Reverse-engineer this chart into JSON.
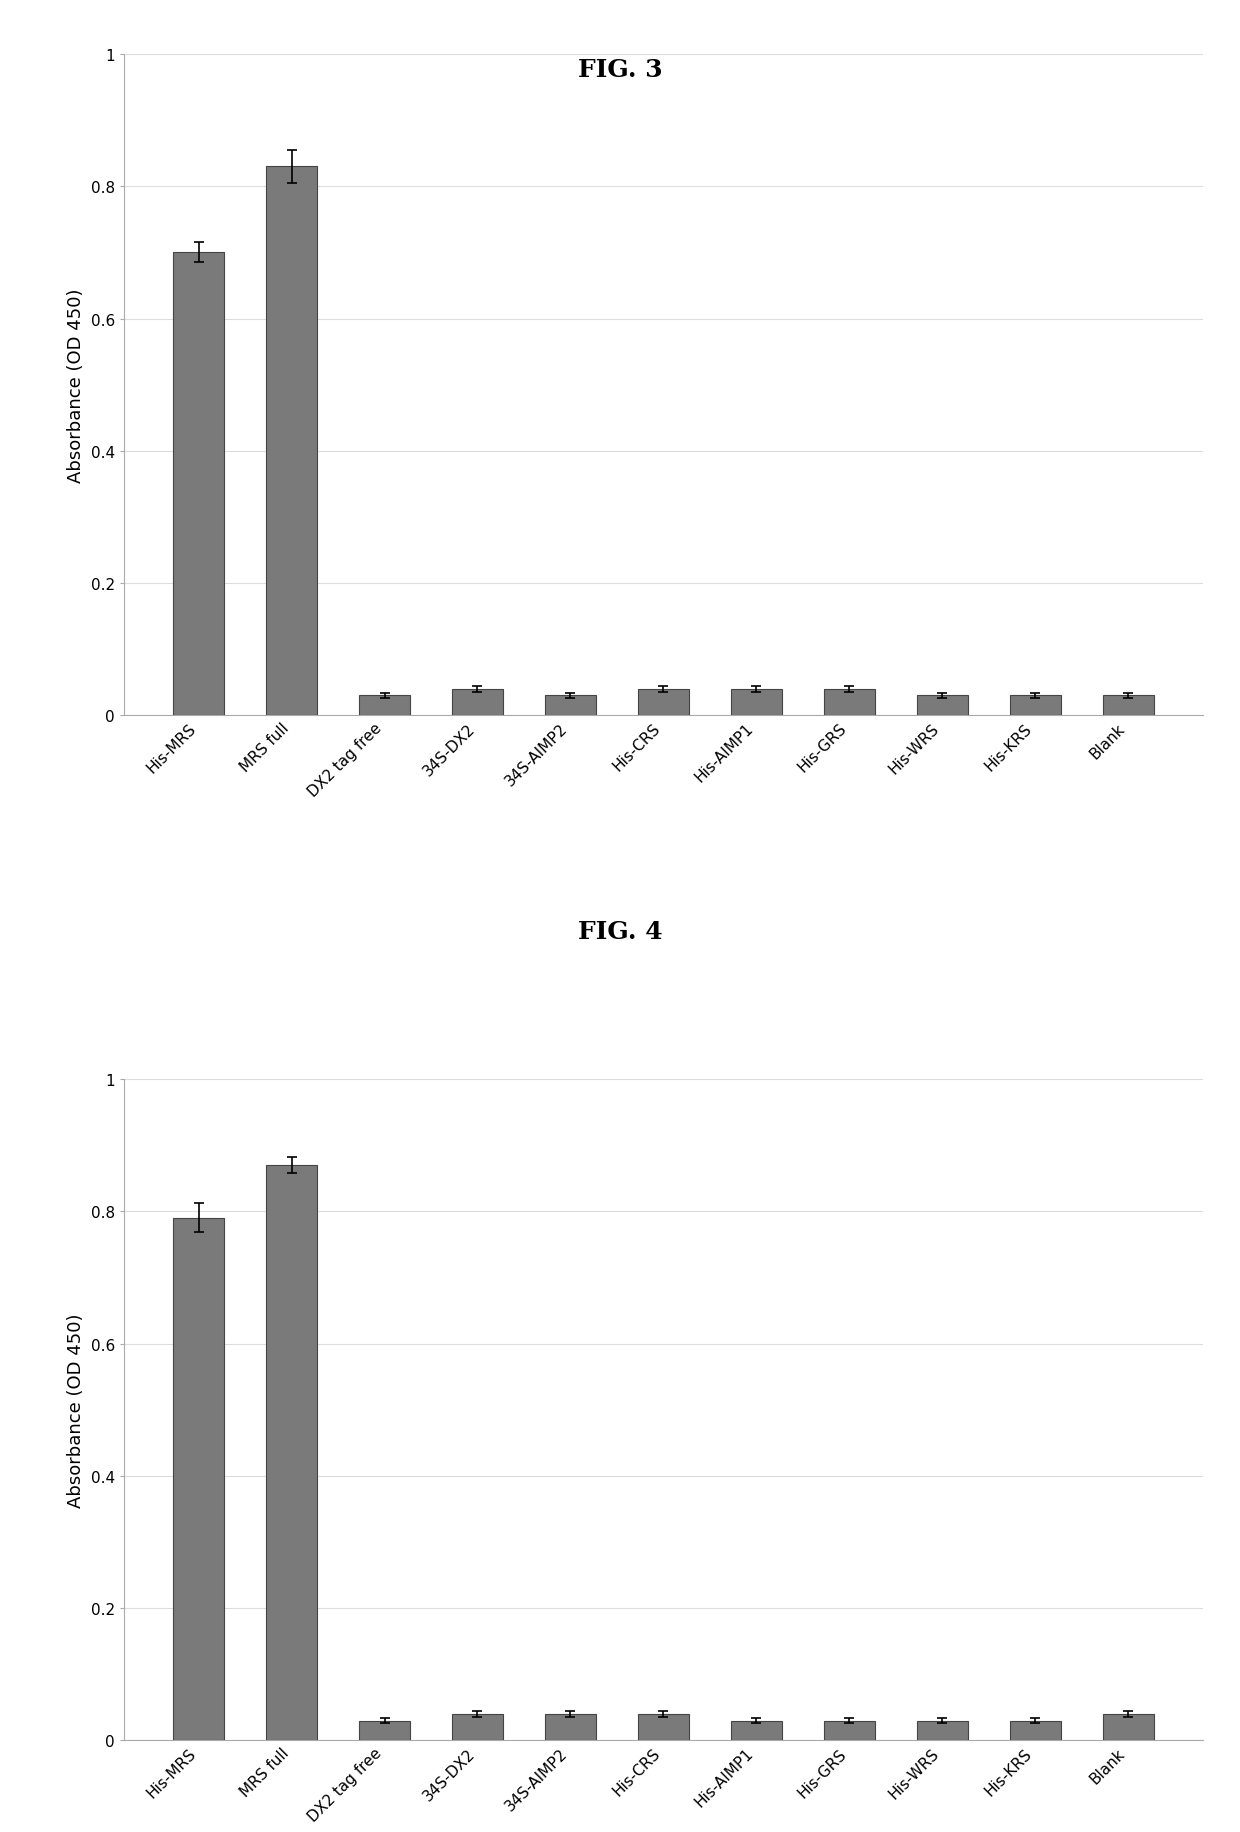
{
  "fig3": {
    "title": "FIG. 3",
    "categories": [
      "His-MRS",
      "MRS full",
      "DX2 tag free",
      "34S-DX2",
      "34S-AIMP2",
      "His-CRS",
      "His-AIMP1",
      "His-GRS",
      "His-WRS",
      "His-KRS",
      "Blank"
    ],
    "values": [
      0.7,
      0.83,
      0.03,
      0.04,
      0.03,
      0.04,
      0.04,
      0.04,
      0.03,
      0.03,
      0.03
    ],
    "errors": [
      0.015,
      0.025,
      0.004,
      0.004,
      0.004,
      0.004,
      0.004,
      0.004,
      0.004,
      0.004,
      0.004
    ],
    "ylabel": "Absorbance (OD 450)",
    "ylim": [
      0,
      1
    ],
    "yticks": [
      0,
      0.2,
      0.4,
      0.6,
      0.8,
      1
    ]
  },
  "fig4": {
    "title": "FIG. 4",
    "categories": [
      "His-MRS",
      "MRS full",
      "DX2 tag free",
      "34S-DX2",
      "34S-AIMP2",
      "His-CRS",
      "His-AIMP1",
      "His-GRS",
      "His-WRS",
      "His-KRS",
      "Blank"
    ],
    "values": [
      0.79,
      0.87,
      0.03,
      0.04,
      0.04,
      0.04,
      0.03,
      0.03,
      0.03,
      0.03,
      0.04
    ],
    "errors": [
      0.022,
      0.012,
      0.004,
      0.004,
      0.004,
      0.004,
      0.004,
      0.004,
      0.004,
      0.004,
      0.004
    ],
    "ylabel": "Absorbance (OD 450)",
    "ylim": [
      0,
      1
    ],
    "yticks": [
      0,
      0.2,
      0.4,
      0.6,
      0.8,
      1
    ]
  },
  "bar_color": "#7a7a7a",
  "bar_edgecolor": "#444444",
  "plot_bg_color": "#ffffff",
  "fig_bg_color": "#ffffff",
  "title_fontsize": 18,
  "label_fontsize": 13,
  "tick_fontsize": 11,
  "bar_width": 0.55
}
